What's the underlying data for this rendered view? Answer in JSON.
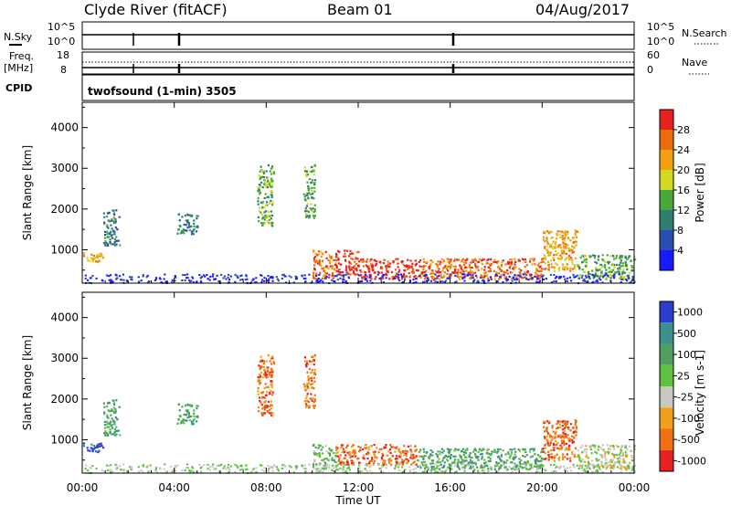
{
  "header": {
    "title": "Clyde River (fitACF)",
    "beam": "Beam 01",
    "date": "04/Aug/2017"
  },
  "top_panels": {
    "nsky_label": "N.Sky",
    "nsky_ticks": [
      "10^5",
      "10^0"
    ],
    "nsearch_label": "N.Search",
    "nsearch_ticks": [
      "10^5",
      "10^0"
    ],
    "freq_label": "Freq.",
    "freq_unit": "[MHz]",
    "freq_ticks": [
      "18",
      "8"
    ],
    "nave_label": "Nave",
    "nave_ticks": [
      "60",
      "0"
    ],
    "cpid_label": "CPID",
    "cpid_value": "twofsound (1-min) 3505"
  },
  "chart_data": [
    {
      "type": "heatmap",
      "name": "power-panel",
      "ylabel": "Slant Range [km]",
      "yticks": [
        "1000",
        "2000",
        "3000",
        "4000"
      ],
      "ylim": [
        180,
        4620
      ],
      "xlim": [
        0,
        24
      ],
      "colorbar": {
        "label": "Power [dB]",
        "ticks": [
          "4",
          "8",
          "12",
          "16",
          "20",
          "24",
          "28"
        ],
        "colors": [
          "#1a1aff",
          "#2a4fb0",
          "#2f7f6f",
          "#4aa838",
          "#d4d820",
          "#f2a010",
          "#ef6a0a",
          "#e82020"
        ]
      },
      "regions": [
        {
          "t": [
            0.0,
            0.9
          ],
          "r": [
            700,
            950
          ],
          "level": 5
        },
        {
          "t": [
            0.9,
            1.6
          ],
          "r": [
            1100,
            2000
          ],
          "level": 2
        },
        {
          "t": [
            4.1,
            5.0
          ],
          "r": [
            1400,
            1900
          ],
          "level": 2
        },
        {
          "t": [
            7.6,
            8.3
          ],
          "r": [
            1600,
            3100
          ],
          "level": 3
        },
        {
          "t": [
            9.6,
            10.1
          ],
          "r": [
            1800,
            3100
          ],
          "level": 3
        },
        {
          "t": [
            10.0,
            11.0
          ],
          "r": [
            300,
            1000
          ],
          "level": 6
        },
        {
          "t": [
            11.0,
            12.0
          ],
          "r": [
            400,
            1000
          ],
          "level": 7
        },
        {
          "t": [
            12.0,
            14.5
          ],
          "r": [
            300,
            800
          ],
          "level": 7
        },
        {
          "t": [
            14.5,
            20.0
          ],
          "r": [
            300,
            800
          ],
          "level": 6
        },
        {
          "t": [
            20.0,
            21.5
          ],
          "r": [
            500,
            1500
          ],
          "level": 5
        },
        {
          "t": [
            21.5,
            24.0
          ],
          "r": [
            300,
            900
          ],
          "level": 3
        }
      ]
    },
    {
      "type": "heatmap",
      "name": "velocity-panel",
      "ylabel": "Slant Range [km]",
      "yticks": [
        "1000",
        "2000",
        "3000",
        "4000"
      ],
      "ylim": [
        180,
        4620
      ],
      "xlim": [
        0,
        24
      ],
      "xticks": [
        "00:00",
        "04:00",
        "08:00",
        "12:00",
        "16:00",
        "20:00",
        "00:00"
      ],
      "xlabel": "Time UT",
      "colorbar": {
        "label": "Velocity [m s-1]",
        "ticks": [
          "1000",
          "500",
          "100",
          "25",
          "-25",
          "-100",
          "-500",
          "-1000"
        ],
        "colors": [
          "#2a3fd0",
          "#3a8f8f",
          "#4f9f5f",
          "#60c040",
          "#c8c8c0",
          "#f0a018",
          "#f07010",
          "#e82020"
        ]
      },
      "regions": [
        {
          "t": [
            0.0,
            0.9
          ],
          "r": [
            700,
            950
          ],
          "level": 0
        },
        {
          "t": [
            0.9,
            1.6
          ],
          "r": [
            1100,
            2000
          ],
          "level": 2
        },
        {
          "t": [
            4.1,
            5.0
          ],
          "r": [
            1400,
            1900
          ],
          "level": 2
        },
        {
          "t": [
            7.6,
            8.3
          ],
          "r": [
            1600,
            3100
          ],
          "level": 6
        },
        {
          "t": [
            9.6,
            10.1
          ],
          "r": [
            1800,
            3100
          ],
          "level": 6
        },
        {
          "t": [
            10.0,
            11.0
          ],
          "r": [
            300,
            900
          ],
          "level": 3
        },
        {
          "t": [
            11.0,
            14.5
          ],
          "r": [
            400,
            900
          ],
          "level": 6
        },
        {
          "t": [
            14.5,
            20.0
          ],
          "r": [
            300,
            800
          ],
          "level": 2
        },
        {
          "t": [
            20.0,
            21.5
          ],
          "r": [
            500,
            1500
          ],
          "level": 6
        },
        {
          "t": [
            21.5,
            24.0
          ],
          "r": [
            300,
            900
          ],
          "level": 4
        }
      ]
    }
  ]
}
